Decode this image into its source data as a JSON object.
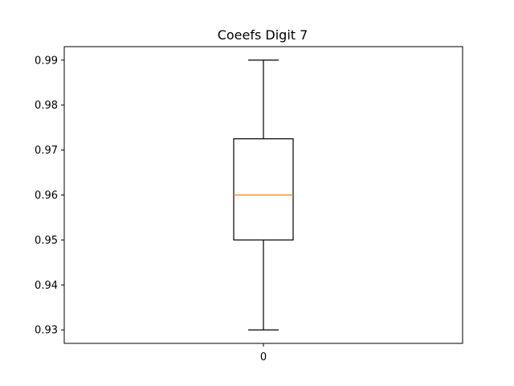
{
  "chart_data": {
    "type": "box",
    "title": "Coeefs Digit 7",
    "xlabel": "",
    "ylabel": "",
    "categories": [
      "0"
    ],
    "ylim": [
      0.927,
      0.993
    ],
    "yticks": [
      "0.93",
      "0.94",
      "0.95",
      "0.96",
      "0.97",
      "0.98",
      "0.99"
    ],
    "boxes": [
      {
        "category": "0",
        "whisker_low": 0.93,
        "q1": 0.95,
        "median": 0.96,
        "q3": 0.9725,
        "whisker_high": 0.99
      }
    ],
    "grid": false,
    "colors": {
      "box": "#000000",
      "median": "#ff7f0e",
      "axes": "#000000"
    }
  }
}
